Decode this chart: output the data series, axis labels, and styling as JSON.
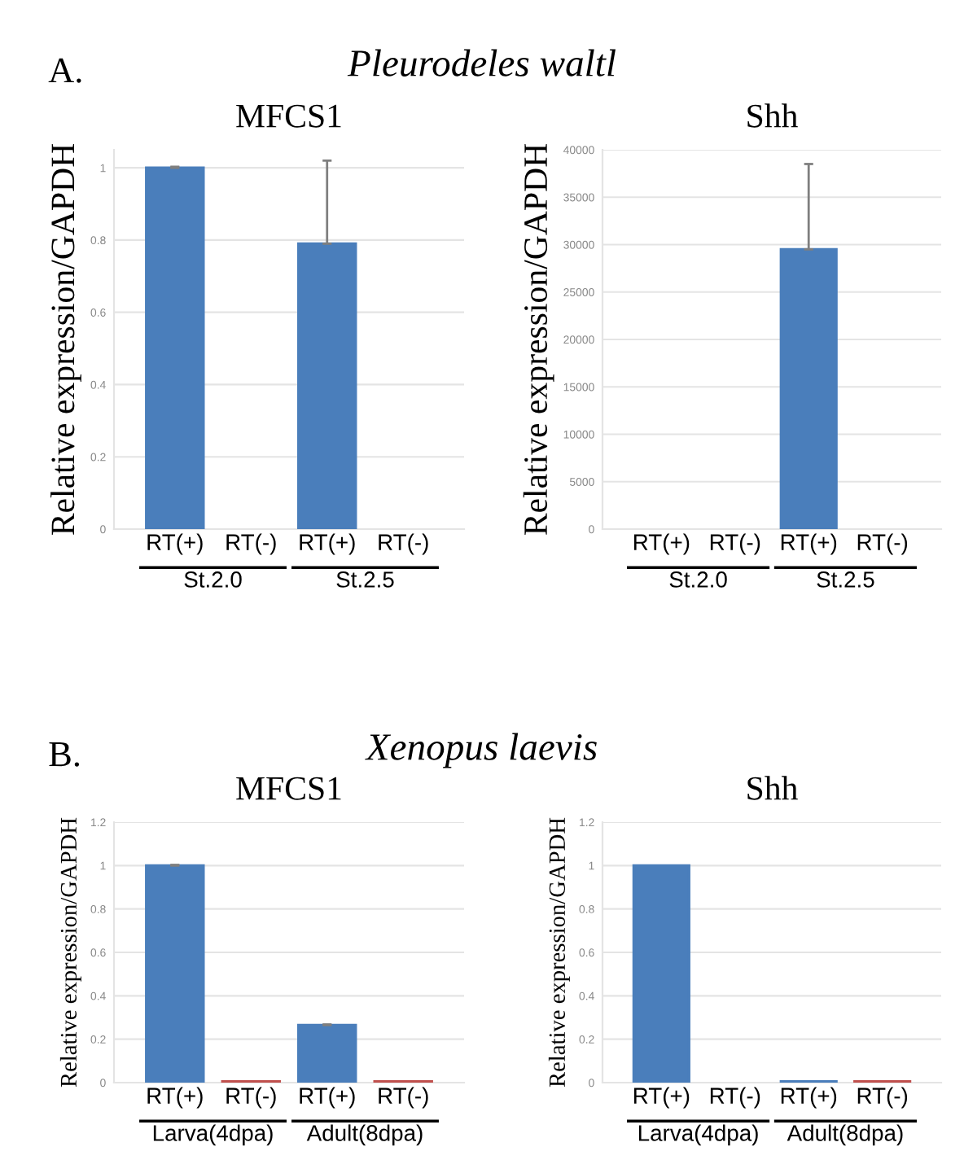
{
  "chart_data": [
    {
      "type": "other",
      "title": "Pleurodeles waltl",
      "annotations": [
        "A."
      ]
    },
    {
      "type": "bar",
      "title": "MFCS1",
      "ylabel": "Relative expression/GAPDH",
      "categories": [
        "RT(+)",
        "RT(-)",
        "RT(+)",
        "RT(-)"
      ],
      "values": [
        1,
        0,
        0.79,
        0
      ],
      "errors": [
        [
          1,
          1.003
        ],
        null,
        [
          0.79,
          1.02
        ],
        null
      ],
      "colors": [
        "#4a7ebb",
        "#c0504d",
        "#4a7ebb",
        "#c0504d"
      ],
      "ylim": [
        0,
        1.05
      ],
      "yticks": [
        0,
        0.2,
        0.4,
        0.6,
        0.8,
        1
      ],
      "grid": "y",
      "annotations": [
        "St.2.0",
        "St.2.5"
      ]
    },
    {
      "type": "bar",
      "title": "Shh",
      "ylabel": "Relative expression/GAPDH",
      "categories": [
        "RT(+)",
        "RT(-)",
        "RT(+)",
        "RT(-)"
      ],
      "values": [
        0,
        0,
        29500,
        0
      ],
      "errors": [
        null,
        null,
        [
          29500,
          38500
        ],
        null
      ],
      "colors": [
        "#4a7ebb",
        "#c0504d",
        "#4a7ebb",
        "#c0504d"
      ],
      "ylim": [
        0,
        40000
      ],
      "yticks": [
        0,
        5000,
        10000,
        15000,
        20000,
        25000,
        30000,
        35000,
        40000
      ],
      "grid": "y",
      "annotations": [
        "St.2.0",
        "St.2.5"
      ]
    },
    {
      "type": "other",
      "title": "Xenopus laevis",
      "annotations": [
        "B."
      ]
    },
    {
      "type": "bar",
      "title": "MFCS1",
      "ylabel": "Relative expression/GAPDH",
      "categories": [
        "RT(+)",
        "RT(-)",
        "RT(+)",
        "RT(-)"
      ],
      "values": [
        1,
        0.005,
        0.265,
        0.005
      ],
      "errors": [
        [
          1,
          1.003
        ],
        null,
        [
          0.265,
          0.268
        ],
        null
      ],
      "colors": [
        "#4a7ebb",
        "#c0504d",
        "#4a7ebb",
        "#c0504d"
      ],
      "ylim": [
        0,
        1.2
      ],
      "yticks": [
        0,
        0.2,
        0.4,
        0.6,
        0.8,
        1,
        1.2
      ],
      "grid": "y",
      "annotations": [
        "Larva(4dpa)",
        "Adult(8dpa)"
      ]
    },
    {
      "type": "bar",
      "title": "Shh",
      "ylabel": "Relative expression/GAPDH",
      "categories": [
        "RT(+)",
        "RT(-)",
        "RT(+)",
        "RT(-)"
      ],
      "values": [
        1,
        0,
        0.005,
        0.005
      ],
      "colors": [
        "#4a7ebb",
        "#c0504d",
        "#4a7ebb",
        "#c0504d"
      ],
      "ylim": [
        0,
        1.2
      ],
      "yticks": [
        0,
        0.2,
        0.4,
        0.6,
        0.8,
        1,
        1.2
      ],
      "grid": "y",
      "annotations": [
        "Larva(4dpa)",
        "Adult(8dpa)"
      ]
    }
  ]
}
